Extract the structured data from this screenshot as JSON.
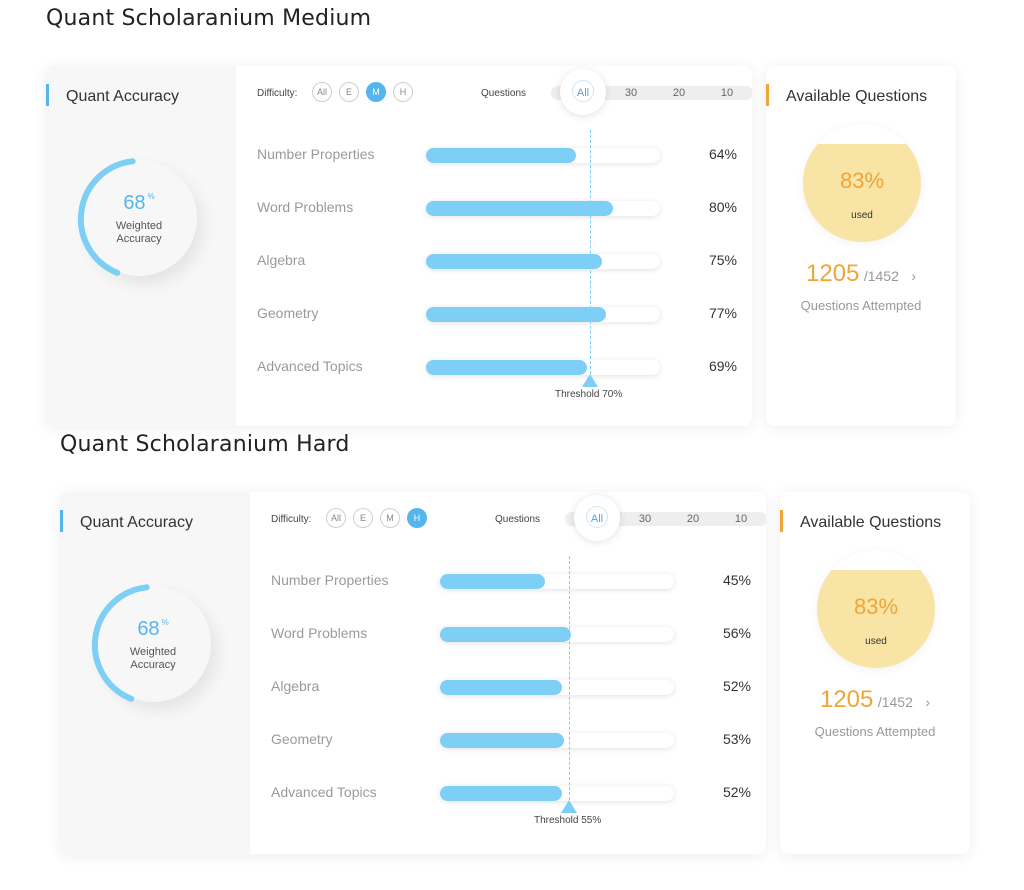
{
  "sections": [
    {
      "title": "Quant Scholaranium Medium",
      "accuracy": {
        "title": "Quant Accuracy",
        "value": "68",
        "unit": "%",
        "label_line1": "Weighted",
        "label_line2": "Accuracy",
        "fraction": 0.68
      },
      "filters": {
        "difficulty_label": "Difficulty:",
        "difficulty_options": [
          "All",
          "E",
          "M",
          "H"
        ],
        "difficulty_selected": "M",
        "questions_label": "Questions",
        "question_options": [
          "All",
          "30",
          "20",
          "10"
        ],
        "questions_selected": "All"
      },
      "topics": [
        {
          "name": "Number Properties",
          "value": 64,
          "label": "64%"
        },
        {
          "name": "Word Problems",
          "value": 80,
          "label": "80%"
        },
        {
          "name": "Algebra",
          "value": 75,
          "label": "75%"
        },
        {
          "name": "Geometry",
          "value": 77,
          "label": "77%"
        },
        {
          "name": "Advanced Topics",
          "value": 69,
          "label": "69%"
        }
      ],
      "threshold": {
        "value": 70,
        "label": "Threshold 70%"
      },
      "available": {
        "title": "Available Questions",
        "pct": "83%",
        "used_label": "used",
        "fraction": 0.83,
        "attempted": "1205",
        "total": "/1452",
        "arrow": "›",
        "attempted_label": "Questions Attempted"
      }
    },
    {
      "title": "Quant Scholaranium Hard",
      "accuracy": {
        "title": "Quant Accuracy",
        "value": "68",
        "unit": "%",
        "label_line1": "Weighted",
        "label_line2": "Accuracy",
        "fraction": 0.68
      },
      "filters": {
        "difficulty_label": "Difficulty:",
        "difficulty_options": [
          "All",
          "E",
          "M",
          "H"
        ],
        "difficulty_selected": "H",
        "questions_label": "Questions",
        "question_options": [
          "All",
          "30",
          "20",
          "10"
        ],
        "questions_selected": "All"
      },
      "topics": [
        {
          "name": "Number Properties",
          "value": 45,
          "label": "45%"
        },
        {
          "name": "Word Problems",
          "value": 56,
          "label": "56%"
        },
        {
          "name": "Algebra",
          "value": 52,
          "label": "52%"
        },
        {
          "name": "Geometry",
          "value": 53,
          "label": "53%"
        },
        {
          "name": "Advanced Topics",
          "value": 52,
          "label": "52%"
        }
      ],
      "threshold": {
        "value": 55,
        "label": "Threshold 55%"
      },
      "available": {
        "title": "Available Questions",
        "pct": "83%",
        "used_label": "used",
        "fraction": 0.83,
        "attempted": "1205",
        "total": "/1452",
        "arrow": "›",
        "attempted_label": "Questions Attempted"
      }
    }
  ],
  "colors": {
    "accent_blue": "#55b6ee",
    "bar_blue": "#7dcff5",
    "accent_orange": "#f0a536",
    "circle_fill": "#f8e4a4"
  }
}
